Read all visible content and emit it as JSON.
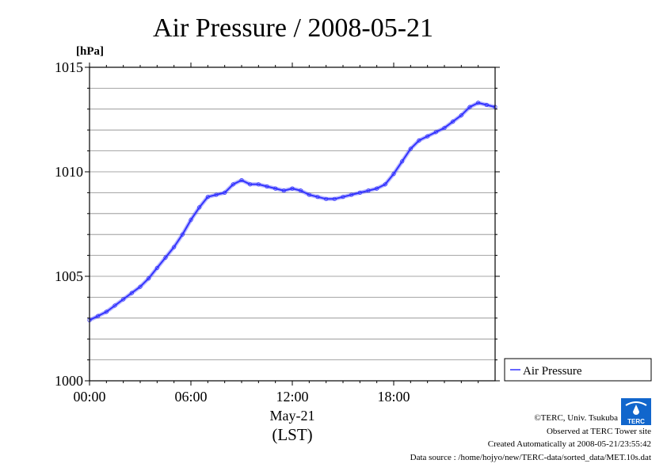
{
  "chart_data": {
    "type": "line",
    "title": "Air Pressure / 2008-05-21",
    "unit": "[hPa]",
    "xlabel": "May-21",
    "xlabel_sub": "(LST)",
    "ylim": [
      1000,
      1015
    ],
    "xlim": [
      0,
      24
    ],
    "y_ticks": [
      {
        "value": 1000,
        "label": "1000"
      },
      {
        "value": 1005,
        "label": "1005"
      },
      {
        "value": 1010,
        "label": "1010"
      },
      {
        "value": 1015,
        "label": "1015"
      }
    ],
    "y_minor_step": 1,
    "x_ticks": [
      {
        "value": 0,
        "label": "00:00"
      },
      {
        "value": 6,
        "label": "06:00"
      },
      {
        "value": 12,
        "label": "12:00"
      },
      {
        "value": 18,
        "label": "18:00"
      }
    ],
    "grid": true,
    "legend_position": "right",
    "series": [
      {
        "name": "Air Pressure",
        "color": "#3333ff",
        "x": [
          0,
          0.5,
          1,
          1.5,
          2,
          2.5,
          3,
          3.5,
          4,
          4.5,
          5,
          5.5,
          6,
          6.5,
          7,
          7.5,
          8,
          8.5,
          9,
          9.5,
          10,
          10.5,
          11,
          11.5,
          12,
          12.5,
          13,
          13.5,
          14,
          14.5,
          15,
          15.5,
          16,
          16.5,
          17,
          17.5,
          18,
          18.5,
          19,
          19.5,
          20,
          20.5,
          21,
          21.5,
          22,
          22.5,
          23,
          23.5,
          24
        ],
        "y": [
          1002.9,
          1003.1,
          1003.3,
          1003.6,
          1003.9,
          1004.2,
          1004.5,
          1004.9,
          1005.4,
          1005.9,
          1006.4,
          1007.0,
          1007.7,
          1008.3,
          1008.8,
          1008.9,
          1009.0,
          1009.4,
          1009.6,
          1009.4,
          1009.4,
          1009.3,
          1009.2,
          1009.1,
          1009.2,
          1009.1,
          1008.9,
          1008.8,
          1008.7,
          1008.7,
          1008.8,
          1008.9,
          1009.0,
          1009.1,
          1009.2,
          1009.4,
          1009.9,
          1010.5,
          1011.1,
          1011.5,
          1011.7,
          1011.9,
          1012.1,
          1012.4,
          1012.7,
          1013.1,
          1013.3,
          1013.2,
          1013.1
        ]
      }
    ]
  },
  "credits": {
    "copyright": "©TERC, Univ. Tsukuba",
    "observed": "Observed at TERC Tower site",
    "created": "Created Automatically at 2008-05-21/23:55:42",
    "source": "Data source : /home/hojyo/new/TERC-data/sorted_data/MET.10s.dat",
    "logo_text": "TERC"
  }
}
